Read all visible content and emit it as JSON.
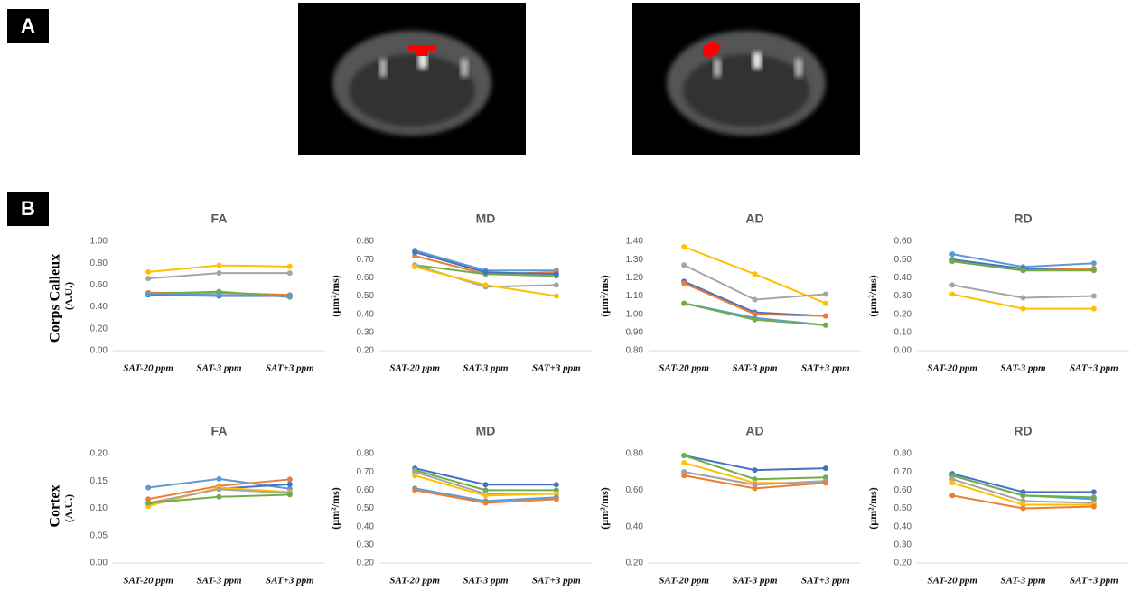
{
  "panels": {
    "a": "A",
    "b": "B"
  },
  "rows": [
    "Corps Calleux",
    "Cortex"
  ],
  "chart_data": [
    {
      "type": "line",
      "title": "FA",
      "y_label": "(A.U.)",
      "categories": [
        "SAT-20 ppm",
        "SAT-3 ppm",
        "SAT+3 ppm"
      ],
      "ylim": [
        0,
        1
      ],
      "yticks": [
        {
          "value": 0,
          "label": "0.00"
        },
        {
          "value": 0.2,
          "label": "0.20"
        },
        {
          "value": 0.4,
          "label": "0.40"
        },
        {
          "value": 0.6,
          "label": "0.60"
        },
        {
          "value": 0.8,
          "label": "0.80"
        },
        {
          "value": 1,
          "label": "1.00"
        }
      ],
      "series": [
        {
          "color": "#ffc000",
          "values": [
            0.72,
            0.78,
            0.77
          ]
        },
        {
          "color": "#a5a5a5",
          "values": [
            0.66,
            0.71,
            0.71
          ]
        },
        {
          "color": "#ed7d31",
          "values": [
            0.53,
            0.53,
            0.51
          ]
        },
        {
          "color": "#70ad47",
          "values": [
            0.52,
            0.54,
            0.49
          ]
        },
        {
          "color": "#4472c4",
          "values": [
            0.51,
            0.5,
            0.5
          ]
        },
        {
          "color": "#5b9bd5",
          "values": [
            0.52,
            0.51,
            0.5
          ]
        }
      ]
    },
    {
      "type": "line",
      "title": "MD",
      "y_label": "(µm²/ms)",
      "categories": [
        "SAT-20 ppm",
        "SAT-3 ppm",
        "SAT+3 ppm"
      ],
      "ylim": [
        0.2,
        0.8
      ],
      "yticks": [
        {
          "value": 0.2,
          "label": "0.20"
        },
        {
          "value": 0.3,
          "label": "0.30"
        },
        {
          "value": 0.4,
          "label": "0.40"
        },
        {
          "value": 0.5,
          "label": "0.50"
        },
        {
          "value": 0.6,
          "label": "0.60"
        },
        {
          "value": 0.7,
          "label": "0.70"
        },
        {
          "value": 0.8,
          "label": "0.80"
        }
      ],
      "series": [
        {
          "color": "#5b9bd5",
          "values": [
            0.75,
            0.64,
            0.64
          ]
        },
        {
          "color": "#ed7d31",
          "values": [
            0.72,
            0.62,
            0.63
          ]
        },
        {
          "color": "#70ad47",
          "values": [
            0.67,
            0.62,
            0.61
          ]
        },
        {
          "color": "#a5a5a5",
          "values": [
            0.67,
            0.55,
            0.56
          ]
        },
        {
          "color": "#ffc000",
          "values": [
            0.66,
            0.56,
            0.5
          ]
        },
        {
          "color": "#4472c4",
          "values": [
            0.74,
            0.63,
            0.62
          ]
        }
      ]
    },
    {
      "type": "line",
      "title": "AD",
      "y_label": "(µm²/ms)",
      "categories": [
        "SAT-20 ppm",
        "SAT-3 ppm",
        "SAT+3 ppm"
      ],
      "ylim": [
        0.8,
        1.4
      ],
      "yticks": [
        {
          "value": 0.8,
          "label": "0.80"
        },
        {
          "value": 0.9,
          "label": "0.90"
        },
        {
          "value": 1,
          "label": "1.00"
        },
        {
          "value": 1.1,
          "label": "1.10"
        },
        {
          "value": 1.2,
          "label": "1.20"
        },
        {
          "value": 1.3,
          "label": "1.30"
        },
        {
          "value": 1.4,
          "label": "1.40"
        }
      ],
      "series": [
        {
          "color": "#ffc000",
          "values": [
            1.37,
            1.22,
            1.06
          ]
        },
        {
          "color": "#a5a5a5",
          "values": [
            1.27,
            1.08,
            1.11
          ]
        },
        {
          "color": "#4472c4",
          "values": [
            1.18,
            1.01,
            0.99
          ]
        },
        {
          "color": "#ed7d31",
          "values": [
            1.17,
            1.0,
            0.99
          ]
        },
        {
          "color": "#5b9bd5",
          "values": [
            1.06,
            0.98,
            0.94
          ]
        },
        {
          "color": "#70ad47",
          "values": [
            1.06,
            0.97,
            0.94
          ]
        }
      ]
    },
    {
      "type": "line",
      "title": "RD",
      "y_label": "(µm²/ms)",
      "categories": [
        "SAT-20 ppm",
        "SAT-3 ppm",
        "SAT+3 ppm"
      ],
      "ylim": [
        0,
        0.6
      ],
      "yticks": [
        {
          "value": 0,
          "label": "0.00"
        },
        {
          "value": 0.1,
          "label": "0.10"
        },
        {
          "value": 0.2,
          "label": "0.20"
        },
        {
          "value": 0.3,
          "label": "0.30"
        },
        {
          "value": 0.4,
          "label": "0.40"
        },
        {
          "value": 0.5,
          "label": "0.50"
        },
        {
          "value": 0.6,
          "label": "0.60"
        }
      ],
      "series": [
        {
          "color": "#5b9bd5",
          "values": [
            0.53,
            0.46,
            0.48
          ]
        },
        {
          "color": "#4472c4",
          "values": [
            0.5,
            0.45,
            0.45
          ]
        },
        {
          "color": "#ed7d31",
          "values": [
            0.49,
            0.44,
            0.45
          ]
        },
        {
          "color": "#70ad47",
          "values": [
            0.49,
            0.44,
            0.44
          ]
        },
        {
          "color": "#a5a5a5",
          "values": [
            0.36,
            0.29,
            0.3
          ]
        },
        {
          "color": "#ffc000",
          "values": [
            0.31,
            0.23,
            0.23
          ]
        }
      ]
    },
    {
      "type": "line",
      "title": "FA",
      "y_label": "(A.U.)",
      "categories": [
        "SAT-20 ppm",
        "SAT-3 ppm",
        "SAT+3 ppm"
      ],
      "ylim": [
        0,
        0.2
      ],
      "yticks": [
        {
          "value": 0,
          "label": "0.00"
        },
        {
          "value": 0.05,
          "label": "0.05"
        },
        {
          "value": 0.1,
          "label": "0.10"
        },
        {
          "value": 0.15,
          "label": "0.15"
        },
        {
          "value": 0.2,
          "label": "0.20"
        }
      ],
      "series": [
        {
          "color": "#5b9bd5",
          "values": [
            0.138,
            0.154,
            0.136
          ]
        },
        {
          "color": "#ed7d31",
          "values": [
            0.117,
            0.141,
            0.153
          ]
        },
        {
          "color": "#4472c4",
          "values": [
            0.108,
            0.136,
            0.144
          ]
        },
        {
          "color": "#ffc000",
          "values": [
            0.104,
            0.138,
            0.13
          ]
        },
        {
          "color": "#a5a5a5",
          "values": [
            0.11,
            0.135,
            0.128
          ]
        },
        {
          "color": "#70ad47",
          "values": [
            0.11,
            0.121,
            0.125
          ]
        }
      ]
    },
    {
      "type": "line",
      "title": "MD",
      "y_label": "(µm²/ms)",
      "categories": [
        "SAT-20 ppm",
        "SAT-3 ppm",
        "SAT+3 ppm"
      ],
      "ylim": [
        0.2,
        0.8
      ],
      "yticks": [
        {
          "value": 0.2,
          "label": "0.20"
        },
        {
          "value": 0.3,
          "label": "0.30"
        },
        {
          "value": 0.4,
          "label": "0.40"
        },
        {
          "value": 0.5,
          "label": "0.50"
        },
        {
          "value": 0.6,
          "label": "0.60"
        },
        {
          "value": 0.7,
          "label": "0.70"
        },
        {
          "value": 0.8,
          "label": "0.80"
        }
      ],
      "series": [
        {
          "color": "#4472c4",
          "values": [
            0.72,
            0.63,
            0.63
          ]
        },
        {
          "color": "#70ad47",
          "values": [
            0.71,
            0.6,
            0.6
          ]
        },
        {
          "color": "#a5a5a5",
          "values": [
            0.7,
            0.58,
            0.58
          ]
        },
        {
          "color": "#ffc000",
          "values": [
            0.68,
            0.57,
            0.58
          ]
        },
        {
          "color": "#5b9bd5",
          "values": [
            0.61,
            0.54,
            0.56
          ]
        },
        {
          "color": "#ed7d31",
          "values": [
            0.6,
            0.53,
            0.55
          ]
        }
      ]
    },
    {
      "type": "line",
      "title": "AD",
      "y_label": "(µm²/ms)",
      "categories": [
        "SAT-20 ppm",
        "SAT-3 ppm",
        "SAT+3 ppm"
      ],
      "ylim": [
        0.2,
        0.8
      ],
      "yticks": [
        {
          "value": 0.2,
          "label": "0.20"
        },
        {
          "value": 0.4,
          "label": "0.40"
        },
        {
          "value": 0.6,
          "label": "0.60"
        },
        {
          "value": 0.8,
          "label": "0.80"
        }
      ],
      "series": [
        {
          "color": "#4472c4",
          "values": [
            0.79,
            0.71,
            0.72
          ]
        },
        {
          "color": "#70ad47",
          "values": [
            0.79,
            0.66,
            0.67
          ]
        },
        {
          "color": "#ffc000",
          "values": [
            0.75,
            0.64,
            0.64
          ]
        },
        {
          "color": "#5b9bd5",
          "values": [
            0.7,
            0.63,
            0.65
          ]
        },
        {
          "color": "#a5a5a5",
          "values": [
            0.7,
            0.63,
            0.65
          ]
        },
        {
          "color": "#ed7d31",
          "values": [
            0.68,
            0.61,
            0.64
          ]
        }
      ]
    },
    {
      "type": "line",
      "title": "RD",
      "y_label": "(µm²/ms)",
      "categories": [
        "SAT-20 ppm",
        "SAT-3 ppm",
        "SAT+3 ppm"
      ],
      "ylim": [
        0.2,
        0.8
      ],
      "yticks": [
        {
          "value": 0.2,
          "label": "0.20"
        },
        {
          "value": 0.3,
          "label": "0.30"
        },
        {
          "value": 0.4,
          "label": "0.40"
        },
        {
          "value": 0.5,
          "label": "0.50"
        },
        {
          "value": 0.6,
          "label": "0.60"
        },
        {
          "value": 0.7,
          "label": "0.70"
        },
        {
          "value": 0.8,
          "label": "0.80"
        }
      ],
      "series": [
        {
          "color": "#4472c4",
          "values": [
            0.69,
            0.59,
            0.59
          ]
        },
        {
          "color": "#5b9bd5",
          "values": [
            0.68,
            0.57,
            0.55
          ]
        },
        {
          "color": "#70ad47",
          "values": [
            0.68,
            0.57,
            0.56
          ]
        },
        {
          "color": "#a5a5a5",
          "values": [
            0.66,
            0.54,
            0.53
          ]
        },
        {
          "color": "#ffc000",
          "values": [
            0.64,
            0.52,
            0.52
          ]
        },
        {
          "color": "#ed7d31",
          "values": [
            0.57,
            0.5,
            0.51
          ]
        }
      ]
    }
  ]
}
